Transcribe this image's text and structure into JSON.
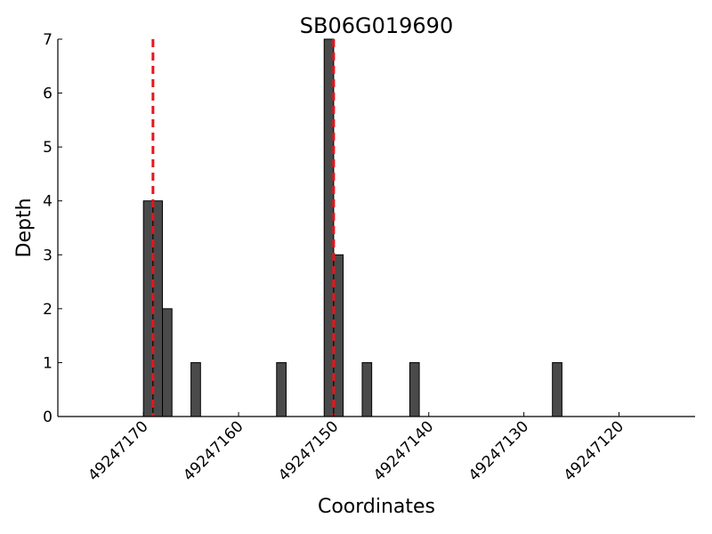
{
  "chart_data": {
    "type": "bar",
    "title": "SB06G019690",
    "xlabel": "Coordinates",
    "ylabel": "Depth",
    "x_axis_reversed": true,
    "xlim": [
      49247179,
      49247112
    ],
    "ylim": [
      0,
      7
    ],
    "x_ticks": [
      49247170,
      49247160,
      49247150,
      49247140,
      49247130,
      49247120
    ],
    "y_ticks": [
      0,
      1,
      2,
      3,
      4,
      5,
      6,
      7
    ],
    "bar_width": 1,
    "bars": [
      {
        "x": 49247169,
        "value": 4
      },
      {
        "x": 49247168,
        "value": 4
      },
      {
        "x": 49247167,
        "value": 2
      },
      {
        "x": 49247164,
        "value": 1
      },
      {
        "x": 49247155,
        "value": 1
      },
      {
        "x": 49247150,
        "value": 7
      },
      {
        "x": 49247149,
        "value": 3
      },
      {
        "x": 49247146,
        "value": 1
      },
      {
        "x": 49247141,
        "value": 1
      },
      {
        "x": 49247126,
        "value": 1
      }
    ],
    "bar_color": "#4a4a4a",
    "reference_lines": [
      49247169,
      49247150
    ],
    "reference_line_color": "#e8141b",
    "grid": false
  }
}
